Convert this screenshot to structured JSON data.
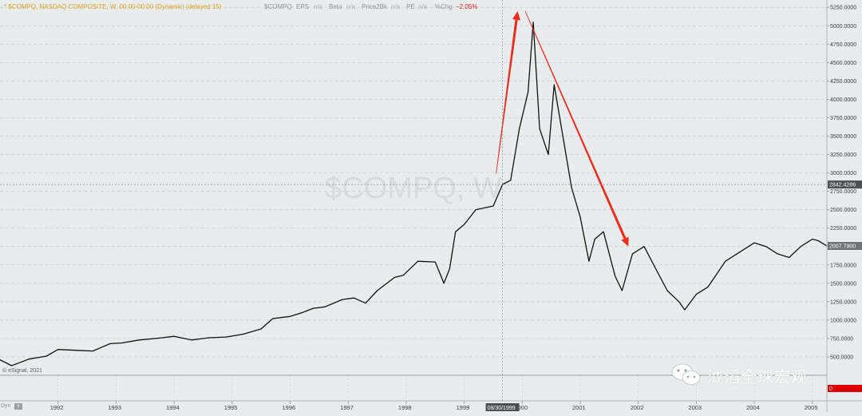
{
  "header": {
    "title": "* $COMPQ, NASDAQ COMPOSITE, W, 00:00-00:00 (Dynamic) (delayed 15)",
    "symbol": "$COMPQ",
    "fields": [
      {
        "label": "EPS",
        "value": "n/a"
      },
      {
        "label": "Beta",
        "value": "n/a"
      },
      {
        "label": "Price2Bk",
        "value": "n/a"
      },
      {
        "label": "PE",
        "value": "n/a"
      }
    ],
    "change_label": "%Chg",
    "change_value": "−2.05%"
  },
  "chart_watermark": "$COMPQ, W",
  "copyright": "© eSignal, 2021",
  "crosshair": {
    "date_label": "08/30/1999",
    "price_label": "2842.4286",
    "price_value": 2842.4286,
    "date_value": 1999.66
  },
  "last_price": {
    "label": "2007.7900",
    "value": 2007.79
  },
  "indicator_pane": {
    "label": "0"
  },
  "bottom_left": {
    "dyn_label": "Dyn",
    "box_label": "h"
  },
  "watermark": {
    "text": "泧滔全球宏观",
    "icon": "wechat-icon"
  },
  "colors": {
    "price_line": "#111111",
    "arrow": "#ee2a1c",
    "crosshair_label": "#4a4f4f",
    "last_price_label": "#6e7474",
    "indicator_marker": "#e00000"
  },
  "chart_data": {
    "type": "line",
    "title": "$COMPQ, NASDAQ COMPOSITE, W",
    "xlabel": "",
    "ylabel": "",
    "xlim": [
      1991.0,
      2005.25
    ],
    "ylim": [
      250,
      5350
    ],
    "x_ticks": [
      1992,
      1993,
      1994,
      1995,
      1996,
      1997,
      1998,
      1999,
      2000,
      2001,
      2002,
      2003,
      2004,
      2005
    ],
    "x_tick_labels": [
      "1992",
      "1993",
      "1994",
      "1995",
      "1996",
      "1997",
      "1998",
      "1999",
      "2000",
      "2001",
      "2002",
      "2003",
      "2004",
      "2005"
    ],
    "y_ticks": [
      500,
      750,
      1000,
      1250,
      1500,
      1750,
      2000,
      2250,
      2500,
      2750,
      3000,
      3250,
      3500,
      3750,
      4000,
      4250,
      4500,
      4750,
      5000,
      5250
    ],
    "y_tick_labels": [
      "500.0000",
      "750.0000",
      "1000.0000",
      "1250.0000",
      "1500.0000",
      "1750.0000",
      "2000.0000",
      "2250.0000",
      "2500.0000",
      "2750.0000",
      "3000.0000",
      "3250.0000",
      "3500.0000",
      "3750.0000",
      "4000.0000",
      "4250.0000",
      "4500.0000",
      "4750.0000",
      "5000.0000",
      "5250.0000"
    ],
    "grid": true,
    "series": [
      {
        "x": [
          1991.0,
          1991.2,
          1991.5,
          1991.8,
          1992.0,
          1992.3,
          1992.6,
          1992.9,
          1993.1,
          1993.4,
          1993.8,
          1994.0,
          1994.3,
          1994.6,
          1994.9,
          1995.2,
          1995.5,
          1995.7,
          1996.0,
          1996.2,
          1996.4,
          1996.6,
          1996.9,
          1997.1,
          1997.3,
          1997.5,
          1997.8,
          1997.95,
          1998.2,
          1998.5,
          1998.65,
          1998.75,
          1998.85,
          1999.0,
          1999.2,
          1999.5,
          1999.66,
          1999.8,
          1999.95,
          2000.1,
          2000.19,
          2000.3,
          2000.45,
          2000.55,
          2000.7,
          2000.85,
          2001.0,
          2001.15,
          2001.25,
          2001.4,
          2001.6,
          2001.72,
          2001.9,
          2002.1,
          2002.3,
          2002.5,
          2002.7,
          2002.8,
          2003.0,
          2003.2,
          2003.5,
          2003.8,
          2004.0,
          2004.2,
          2004.4,
          2004.6,
          2004.8,
          2005.0,
          2005.1,
          2005.25
        ],
        "values": [
          460,
          380,
          470,
          510,
          600,
          590,
          580,
          680,
          690,
          730,
          760,
          780,
          730,
          760,
          770,
          810,
          880,
          1020,
          1050,
          1100,
          1160,
          1180,
          1280,
          1300,
          1230,
          1400,
          1580,
          1610,
          1800,
          1790,
          1500,
          1700,
          2200,
          2300,
          2500,
          2550,
          2842,
          2900,
          3600,
          4100,
          5048,
          3600,
          3250,
          4200,
          3500,
          2800,
          2400,
          1800,
          2100,
          2200,
          1600,
          1400,
          1900,
          2000,
          1700,
          1400,
          1250,
          1140,
          1350,
          1450,
          1800,
          1950,
          2050,
          2000,
          1900,
          1850,
          2000,
          2100,
          2080,
          2007
        ]
      }
    ],
    "annotations": [
      {
        "type": "arrow",
        "from": [
          1999.55,
          2990
        ],
        "to": [
          1999.92,
          5200
        ]
      },
      {
        "type": "arrow",
        "from": [
          2000.05,
          5200
        ],
        "to": [
          2001.83,
          2000
        ]
      }
    ]
  }
}
